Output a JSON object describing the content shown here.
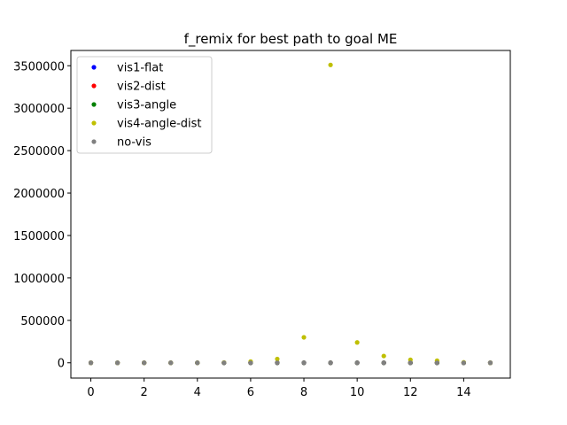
{
  "chart_data": {
    "type": "scatter",
    "title": "f_remix for best path to goal ME",
    "xlabel": "",
    "ylabel": "",
    "xlim": [
      -0.75,
      15.75
    ],
    "ylim": [
      -180000,
      3680000
    ],
    "xticks": [
      0,
      2,
      4,
      6,
      8,
      10,
      12,
      14
    ],
    "yticks": [
      0,
      500000,
      1000000,
      1500000,
      2000000,
      2500000,
      3000000,
      3500000
    ],
    "grid": false,
    "legend_position": "top-left",
    "x": [
      0,
      1,
      2,
      3,
      4,
      5,
      6,
      7,
      8,
      9,
      10,
      11,
      12,
      13,
      14,
      15
    ],
    "series": [
      {
        "name": "vis1-flat",
        "color": "#0000ff",
        "values": [
          0,
          0,
          0,
          0,
          0,
          0,
          0,
          0,
          0,
          0,
          0,
          0,
          0,
          0,
          0,
          0
        ]
      },
      {
        "name": "vis2-dist",
        "color": "#ff0000",
        "values": [
          0,
          0,
          0,
          0,
          0,
          0,
          0,
          0,
          0,
          0,
          0,
          0,
          0,
          0,
          0,
          0
        ]
      },
      {
        "name": "vis3-angle",
        "color": "#008000",
        "values": [
          0,
          0,
          0,
          0,
          0,
          0,
          0,
          0,
          0,
          0,
          0,
          0,
          0,
          0,
          0,
          0
        ]
      },
      {
        "name": "vis4-angle-dist",
        "color": "#bfbf00",
        "values": [
          0,
          0,
          0,
          0,
          0,
          3000,
          15000,
          45000,
          300000,
          3510000,
          240000,
          80000,
          35000,
          25000,
          5000,
          0
        ]
      },
      {
        "name": "no-vis",
        "color": "#808080",
        "values": [
          0,
          0,
          0,
          0,
          0,
          0,
          0,
          0,
          0,
          0,
          0,
          0,
          0,
          0,
          0,
          0
        ]
      }
    ]
  }
}
